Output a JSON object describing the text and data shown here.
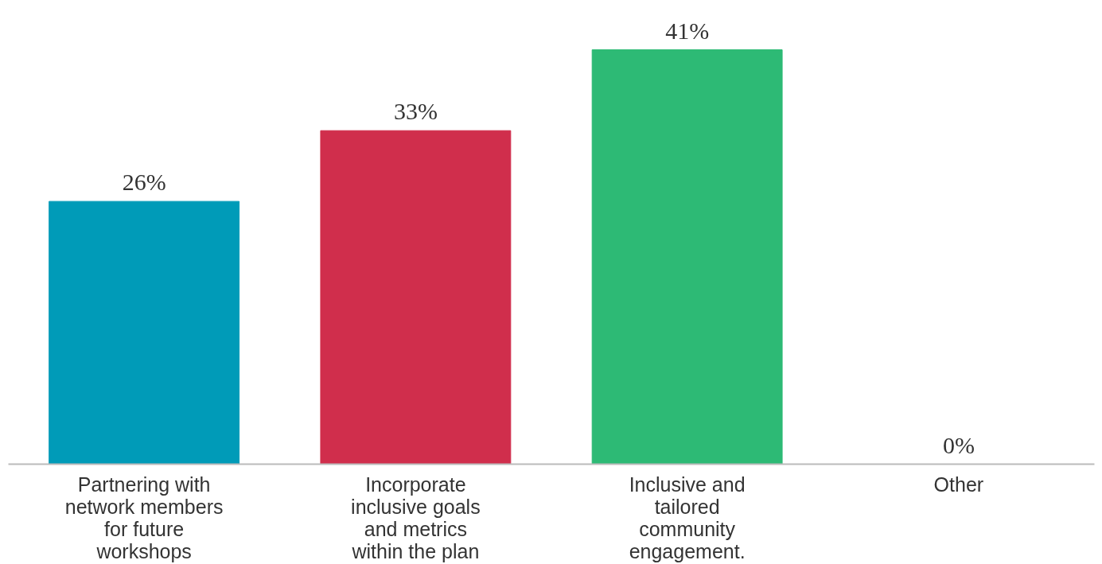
{
  "chart_data": {
    "type": "bar",
    "categories": [
      "Partnering with network members for future workshops",
      "Incorporate inclusive goals and metrics within the plan",
      "Inclusive and tailored community engagement.",
      "Other"
    ],
    "values": [
      26,
      33,
      41,
      0
    ],
    "colors": [
      "#009bb8",
      "#d02e4c",
      "#2dba75",
      "#2dba75"
    ],
    "value_labels": [
      "26%",
      "33%",
      "41%",
      "0%"
    ],
    "grid": false
  }
}
